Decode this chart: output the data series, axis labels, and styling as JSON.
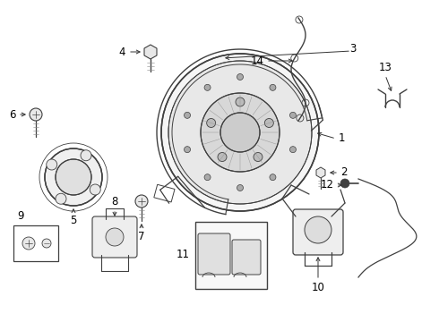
{
  "bg_color": "#ffffff",
  "line_color": "#404040",
  "fig_width": 4.9,
  "fig_height": 3.6,
  "dpi": 100,
  "label_fontsize": 8.5,
  "label_color": "#000000",
  "arrow_color": "#333333",
  "lw_main": 0.9,
  "lw_thin": 0.6,
  "lw_thick": 1.1
}
